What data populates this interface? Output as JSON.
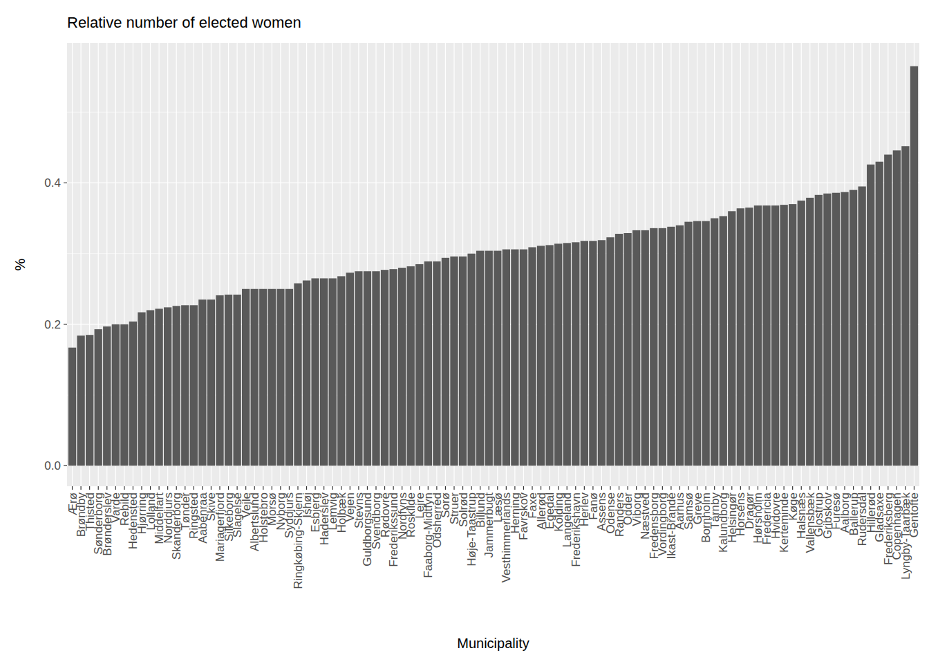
{
  "chart_data": {
    "type": "bar",
    "title": "Relative number of elected women",
    "x_label": "Municipality",
    "y_label": "%",
    "categories": [
      "Ærø",
      "Brøndby",
      "Thisted",
      "Sønderborg",
      "Brønderslev",
      "Varde",
      "Rebild",
      "Hedensted",
      "Hjørring",
      "Lolland",
      "Middelfart",
      "Norddjurs",
      "Skanderborg",
      "Tønder",
      "Ringsted",
      "Aabenraa",
      "Skive",
      "Mariagerfjord",
      "Silkeborg",
      "Slagelse",
      "Vejle",
      "Albertslund",
      "Holstebro",
      "Morsø",
      "Nyborg",
      "Syddjurs",
      "Ringkøbing-Skjern",
      "Ishøj",
      "Esbjerg",
      "Haderslev",
      "Lemvig",
      "Holbæk",
      "Vejen",
      "Stevns",
      "Guldborgsund",
      "Svendborg",
      "Rødovre",
      "Frederikssund",
      "Nordfyns",
      "Roskilde",
      "Lejre",
      "Faaborg-Midtfyn",
      "Odsherred",
      "Sorø",
      "Struer",
      "Solrød",
      "Høje-Taastrup",
      "Billund",
      "Jammerbugt",
      "Læsø",
      "Vesthimmerlands",
      "Herning",
      "Favrskov",
      "Faxe",
      "Allerød",
      "Egedal",
      "Kolding",
      "Langeland",
      "Frederikshavn",
      "Herlev",
      "Fanø",
      "Assens",
      "Odense",
      "Randers",
      "Odder",
      "Viborg",
      "Næstved",
      "Fredensborg",
      "Vordingborg",
      "Ikast-Brande",
      "Aarhus",
      "Samsø",
      "Greve",
      "Bornholm",
      "Tårnby",
      "Kalundborg",
      "Helsingør",
      "Horsens",
      "Dragør",
      "Hørsholm",
      "Fredericia",
      "Hvidovre",
      "Kerteminde",
      "Køge",
      "Halsnæs",
      "Vallensbæk",
      "Glostrup",
      "Gribskov",
      "Furesø",
      "Aalborg",
      "Ballerup",
      "Rudersdal",
      "Hillerød",
      "Gladsaxe",
      "Frederiksberg",
      "Copenhagen",
      "Lyngby-Taarbæk",
      "Gentofte"
    ],
    "values": [
      0.167,
      0.184,
      0.185,
      0.193,
      0.197,
      0.2,
      0.2,
      0.204,
      0.217,
      0.22,
      0.222,
      0.224,
      0.226,
      0.227,
      0.227,
      0.235,
      0.235,
      0.241,
      0.242,
      0.242,
      0.25,
      0.25,
      0.25,
      0.25,
      0.25,
      0.25,
      0.258,
      0.262,
      0.265,
      0.265,
      0.265,
      0.268,
      0.273,
      0.275,
      0.275,
      0.275,
      0.277,
      0.278,
      0.28,
      0.282,
      0.285,
      0.289,
      0.289,
      0.294,
      0.296,
      0.296,
      0.3,
      0.304,
      0.304,
      0.304,
      0.306,
      0.306,
      0.306,
      0.309,
      0.311,
      0.312,
      0.314,
      0.315,
      0.316,
      0.318,
      0.318,
      0.319,
      0.323,
      0.328,
      0.329,
      0.333,
      0.333,
      0.336,
      0.336,
      0.338,
      0.34,
      0.345,
      0.346,
      0.346,
      0.35,
      0.353,
      0.36,
      0.364,
      0.365,
      0.368,
      0.368,
      0.368,
      0.369,
      0.37,
      0.375,
      0.379,
      0.383,
      0.385,
      0.386,
      0.387,
      0.39,
      0.395,
      0.426,
      0.43,
      0.44,
      0.446,
      0.452,
      0.565
    ],
    "color": "#595959",
    "ylim": [
      -0.029,
      0.598
    ],
    "yticks": [
      {
        "value": 0,
        "label": "0.0"
      },
      0.2,
      0.4
    ],
    "grid": true
  }
}
